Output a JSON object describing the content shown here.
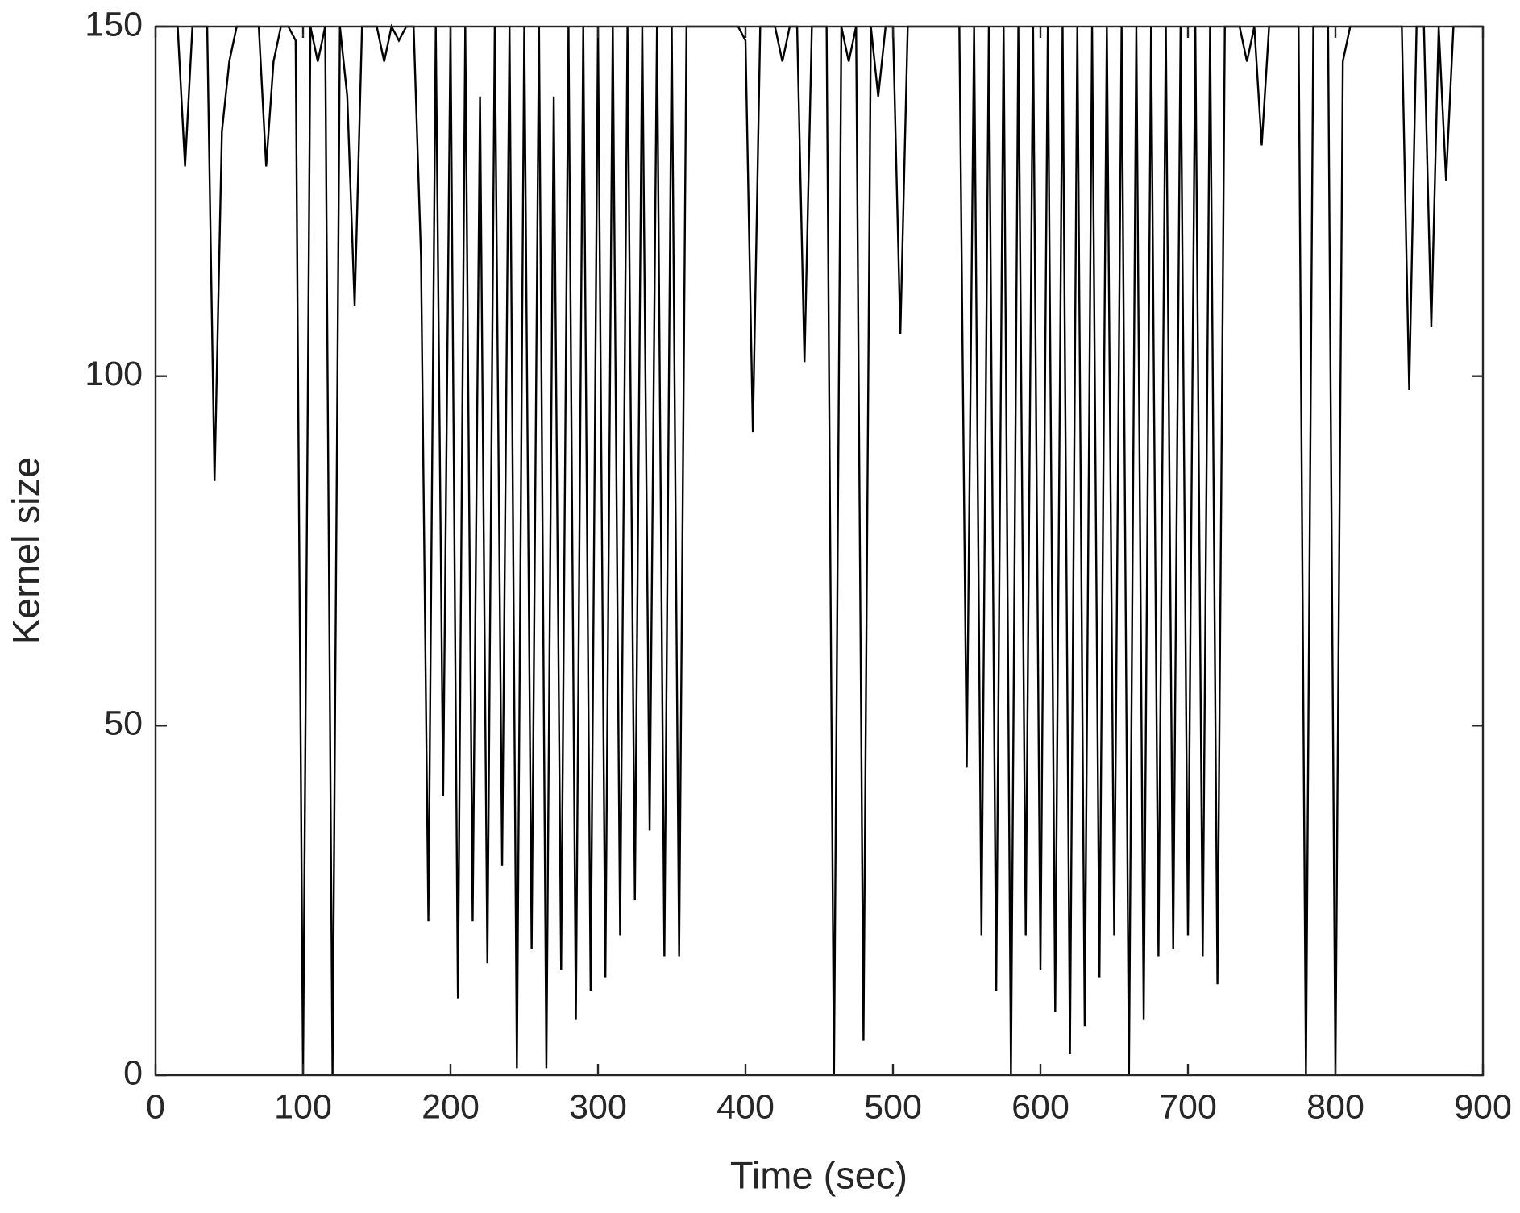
{
  "chart_data": {
    "type": "line",
    "x_label": "Time (sec)",
    "y_label": "Kernel size",
    "x": [
      0,
      5,
      10,
      15,
      20,
      25,
      30,
      35,
      40,
      45,
      50,
      55,
      60,
      65,
      70,
      75,
      80,
      85,
      90,
      95,
      100,
      105,
      110,
      115,
      120,
      125,
      130,
      135,
      140,
      145,
      150,
      155,
      160,
      165,
      170,
      175,
      180,
      185,
      190,
      195,
      200,
      205,
      210,
      215,
      220,
      225,
      230,
      235,
      240,
      245,
      250,
      255,
      260,
      265,
      270,
      275,
      280,
      285,
      290,
      295,
      300,
      305,
      310,
      315,
      320,
      325,
      330,
      335,
      340,
      345,
      350,
      355,
      360,
      365,
      370,
      375,
      380,
      385,
      390,
      395,
      400,
      405,
      410,
      415,
      420,
      425,
      430,
      435,
      440,
      445,
      450,
      455,
      460,
      465,
      470,
      475,
      480,
      485,
      490,
      495,
      500,
      505,
      510,
      515,
      520,
      525,
      530,
      535,
      540,
      545,
      550,
      555,
      560,
      565,
      570,
      575,
      580,
      585,
      590,
      595,
      600,
      605,
      610,
      615,
      620,
      625,
      630,
      635,
      640,
      645,
      650,
      655,
      660,
      665,
      670,
      675,
      680,
      685,
      690,
      695,
      700,
      705,
      710,
      715,
      720,
      725,
      730,
      735,
      740,
      745,
      750,
      755,
      760,
      765,
      770,
      775,
      780,
      785,
      790,
      795,
      800,
      805,
      810,
      815,
      820,
      825,
      830,
      835,
      840,
      845,
      850,
      855,
      860,
      865,
      870,
      875,
      880,
      885,
      890,
      895,
      900
    ],
    "series": [
      {
        "color": "#000000",
        "values": [
          150,
          150,
          150,
          150,
          130,
          150,
          150,
          150,
          85,
          135,
          145,
          150,
          150,
          150,
          150,
          130,
          145,
          150,
          150,
          148,
          0,
          150,
          145,
          150,
          0,
          150,
          140,
          110,
          150,
          150,
          150,
          145,
          150,
          148,
          150,
          150,
          117,
          22,
          150,
          40,
          150,
          11,
          150,
          22,
          140,
          16,
          150,
          30,
          150,
          1,
          150,
          18,
          150,
          1,
          140,
          15,
          150,
          8,
          150,
          12,
          150,
          14,
          150,
          20,
          150,
          25,
          150,
          35,
          150,
          17,
          150,
          17,
          150,
          150,
          150,
          150,
          150,
          150,
          150,
          150,
          148,
          92,
          150,
          150,
          150,
          145,
          150,
          150,
          102,
          150,
          150,
          150,
          0,
          150,
          145,
          150,
          5,
          150,
          140,
          150,
          150,
          106,
          150,
          150,
          150,
          150,
          150,
          150,
          150,
          150,
          44,
          150,
          20,
          150,
          12,
          150,
          0,
          150,
          20,
          150,
          15,
          150,
          9,
          150,
          3,
          150,
          7,
          150,
          14,
          150,
          20,
          150,
          0,
          150,
          8,
          150,
          17,
          150,
          18,
          150,
          20,
          150,
          17,
          150,
          13,
          150,
          150,
          150,
          145,
          150,
          133,
          150,
          150,
          150,
          150,
          150,
          0,
          150,
          150,
          150,
          0,
          145,
          150,
          150,
          150,
          150,
          150,
          150,
          150,
          150,
          98,
          150,
          150,
          107,
          150,
          128,
          150,
          150,
          150,
          150,
          150
        ]
      }
    ],
    "xlim": [
      0,
      900
    ],
    "ylim": [
      0,
      150
    ],
    "xticks": [
      0,
      100,
      200,
      300,
      400,
      500,
      600,
      700,
      800,
      900
    ],
    "yticks": [
      0,
      50,
      100,
      150
    ]
  }
}
